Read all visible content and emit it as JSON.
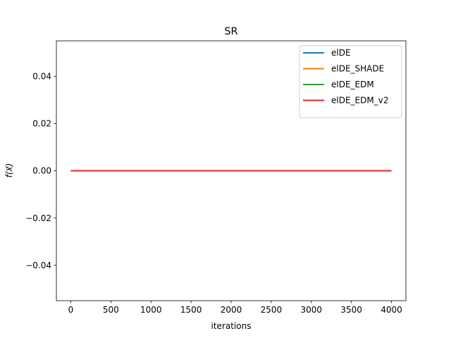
{
  "chart_data": {
    "type": "line",
    "title": "SR",
    "xlabel": "iterations",
    "ylabel": "f(x⃗)",
    "xlim": [
      -180,
      4180
    ],
    "ylim": [
      -0.055,
      0.055
    ],
    "xticks": [
      0,
      500,
      1000,
      1500,
      2000,
      2500,
      3000,
      3500,
      4000
    ],
    "xtick_labels": [
      "0",
      "500",
      "1000",
      "1500",
      "2000",
      "2500",
      "3000",
      "3500",
      "4000"
    ],
    "yticks": [
      -0.04,
      -0.02,
      0.0,
      0.02,
      0.04
    ],
    "ytick_labels": [
      "−0.04",
      "−0.02",
      "0.00",
      "0.02",
      "0.04"
    ],
    "grid": false,
    "legend_position": "top-right",
    "series": [
      {
        "name": "elDE",
        "color": "#1f77b4",
        "x": [
          0,
          4000
        ],
        "y": [
          0,
          0
        ]
      },
      {
        "name": "elDE_SHADE",
        "color": "#ff7f0e",
        "x": [
          0,
          4000
        ],
        "y": [
          0,
          0
        ]
      },
      {
        "name": "elDE_EDM",
        "color": "#2ca02c",
        "x": [
          0,
          4000
        ],
        "y": [
          0,
          0
        ]
      },
      {
        "name": "elDE_EDM_v2",
        "color": "#d62728",
        "x": [
          0,
          4000
        ],
        "y": [
          0,
          0
        ]
      }
    ]
  }
}
